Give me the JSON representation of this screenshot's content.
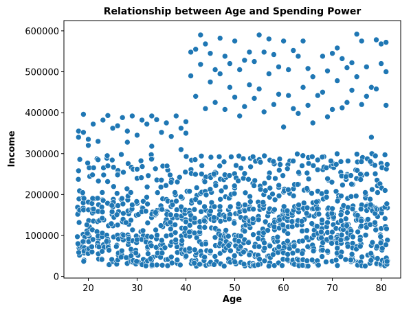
{
  "chart_data": {
    "type": "scatter",
    "title": "Relationship between Age and Spending Power",
    "xlabel": "Age",
    "ylabel": "Income",
    "xlim": [
      15.0,
      84.0
    ],
    "ylim": [
      -4000,
      625000
    ],
    "xticks": [
      20,
      30,
      40,
      50,
      60,
      70,
      80
    ],
    "yticks": [
      0,
      100000,
      200000,
      300000,
      400000,
      500000,
      600000
    ],
    "grid": false,
    "color": "#1f77b4",
    "age_range": [
      18,
      81
    ],
    "points": [
      [
        18,
        258000
      ],
      [
        18,
        340000
      ],
      [
        18,
        355000
      ],
      [
        19,
        396000
      ],
      [
        19,
        352000
      ],
      [
        20,
        320000
      ],
      [
        20,
        335000
      ],
      [
        21,
        372000
      ],
      [
        22,
        330000
      ],
      [
        22,
        285000
      ],
      [
        23,
        382000
      ],
      [
        24,
        393000
      ],
      [
        24,
        270000
      ],
      [
        25,
        362000
      ],
      [
        26,
        368000
      ],
      [
        26,
        248000
      ],
      [
        27,
        388000
      ],
      [
        28,
        355000
      ],
      [
        28,
        328000
      ],
      [
        29,
        392000
      ],
      [
        30,
        345000
      ],
      [
        30,
        262000
      ],
      [
        31,
        382000
      ],
      [
        32,
        372000
      ],
      [
        33,
        392000
      ],
      [
        33,
        318000
      ],
      [
        34,
        383000
      ],
      [
        35,
        352000
      ],
      [
        36,
        375000
      ],
      [
        37,
        342000
      ],
      [
        38,
        392000
      ],
      [
        39,
        362000
      ],
      [
        39,
        310000
      ],
      [
        40,
        378000
      ],
      [
        40,
        350000
      ],
      [
        41,
        548000
      ],
      [
        41,
        490000
      ],
      [
        42,
        555000
      ],
      [
        42,
        440000
      ],
      [
        43,
        590000
      ],
      [
        43,
        518000
      ],
      [
        44,
        568000
      ],
      [
        44,
        410000
      ],
      [
        45,
        545000
      ],
      [
        45,
        475000
      ],
      [
        46,
        505000
      ],
      [
        46,
        425000
      ],
      [
        47,
        582000
      ],
      [
        47,
        495000
      ],
      [
        48,
        538000
      ],
      [
        48,
        408000
      ],
      [
        49,
        520000
      ],
      [
        49,
        462000
      ],
      [
        50,
        575000
      ],
      [
        50,
        438000
      ],
      [
        51,
        392000
      ],
      [
        51,
        505000
      ],
      [
        52,
        528000
      ],
      [
        52,
        415000
      ],
      [
        53,
        548000
      ],
      [
        53,
        468000
      ],
      [
        54,
        525000
      ],
      [
        54,
        435000
      ],
      [
        55,
        590000
      ],
      [
        55,
        458000
      ],
      [
        56,
        548000
      ],
      [
        56,
        402000
      ],
      [
        57,
        580000
      ],
      [
        57,
        495000
      ],
      [
        58,
        542000
      ],
      [
        58,
        420000
      ],
      [
        59,
        512000
      ],
      [
        59,
        445000
      ],
      [
        60,
        575000
      ],
      [
        60,
        365000
      ],
      [
        61,
        505000
      ],
      [
        61,
        442000
      ],
      [
        62,
        552000
      ],
      [
        62,
        410000
      ],
      [
        63,
        538000
      ],
      [
        63,
        398000
      ],
      [
        64,
        575000
      ],
      [
        64,
        462000
      ],
      [
        65,
        508000
      ],
      [
        65,
        418000
      ],
      [
        66,
        488000
      ],
      [
        66,
        375000
      ],
      [
        67,
        442000
      ],
      [
        68,
        538000
      ],
      [
        68,
        450000
      ],
      [
        69,
        502000
      ],
      [
        69,
        390000
      ],
      [
        70,
        545000
      ],
      [
        70,
        408000
      ],
      [
        71,
        558000
      ],
      [
        71,
        478000
      ],
      [
        72,
        532000
      ],
      [
        72,
        412000
      ],
      [
        73,
        510000
      ],
      [
        73,
        425000
      ],
      [
        74,
        522000
      ],
      [
        74,
        455000
      ],
      [
        75,
        592000
      ],
      [
        75,
        488000
      ],
      [
        76,
        575000
      ],
      [
        76,
        420000
      ],
      [
        77,
        512000
      ],
      [
        77,
        440000
      ],
      [
        78,
        462000
      ],
      [
        78,
        340000
      ],
      [
        79,
        578000
      ],
      [
        79,
        458000
      ],
      [
        80,
        568000
      ],
      [
        80,
        520000
      ],
      [
        81,
        572000
      ],
      [
        81,
        500000
      ],
      [
        81,
        418000
      ]
    ]
  }
}
